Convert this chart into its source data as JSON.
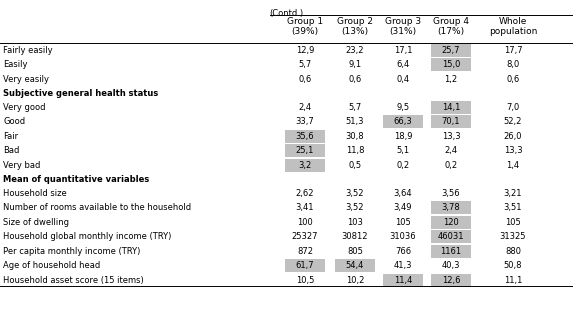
{
  "title": "(Contd.)",
  "rows": [
    {
      "label": "Fairly easily",
      "values": [
        "12,9",
        "23,2",
        "17,1",
        "25,7",
        "17,7"
      ],
      "highlights": [
        false,
        false,
        false,
        true,
        false
      ],
      "bold": false
    },
    {
      "label": "Easily",
      "values": [
        "5,7",
        "9,1",
        "6,4",
        "15,0",
        "8,0"
      ],
      "highlights": [
        false,
        false,
        false,
        true,
        false
      ],
      "bold": false
    },
    {
      "label": "Very easily",
      "values": [
        "0,6",
        "0,6",
        "0,4",
        "1,2",
        "0,6"
      ],
      "highlights": [
        false,
        false,
        false,
        false,
        false
      ],
      "bold": false
    },
    {
      "label": "Subjective general health status",
      "values": [
        "",
        "",
        "",
        "",
        ""
      ],
      "highlights": [
        false,
        false,
        false,
        false,
        false
      ],
      "bold": true
    },
    {
      "label": "Very good",
      "values": [
        "2,4",
        "5,7",
        "9,5",
        "14,1",
        "7,0"
      ],
      "highlights": [
        false,
        false,
        false,
        true,
        false
      ],
      "bold": false
    },
    {
      "label": "Good",
      "values": [
        "33,7",
        "51,3",
        "66,3",
        "70,1",
        "52,2"
      ],
      "highlights": [
        false,
        false,
        true,
        true,
        false
      ],
      "bold": false
    },
    {
      "label": "Fair",
      "values": [
        "35,6",
        "30,8",
        "18,9",
        "13,3",
        "26,0"
      ],
      "highlights": [
        true,
        false,
        false,
        false,
        false
      ],
      "bold": false
    },
    {
      "label": "Bad",
      "values": [
        "25,1",
        "11,8",
        "5,1",
        "2,4",
        "13,3"
      ],
      "highlights": [
        true,
        false,
        false,
        false,
        false
      ],
      "bold": false
    },
    {
      "label": "Very bad",
      "values": [
        "3,2",
        "0,5",
        "0,2",
        "0,2",
        "1,4"
      ],
      "highlights": [
        true,
        false,
        false,
        false,
        false
      ],
      "bold": false
    },
    {
      "label": "Mean of quantitative variables",
      "values": [
        "",
        "",
        "",
        "",
        ""
      ],
      "highlights": [
        false,
        false,
        false,
        false,
        false
      ],
      "bold": true
    },
    {
      "label": "Household size",
      "values": [
        "2,62",
        "3,52",
        "3,64",
        "3,56",
        "3,21"
      ],
      "highlights": [
        false,
        false,
        false,
        false,
        false
      ],
      "bold": false
    },
    {
      "label": "Number of rooms available to the household",
      "values": [
        "3,41",
        "3,52",
        "3,49",
        "3,78",
        "3,51"
      ],
      "highlights": [
        false,
        false,
        false,
        true,
        false
      ],
      "bold": false
    },
    {
      "label": "Size of dwelling",
      "values": [
        "100",
        "103",
        "105",
        "120",
        "105"
      ],
      "highlights": [
        false,
        false,
        false,
        true,
        false
      ],
      "bold": false
    },
    {
      "label": "Household global monthly income (TRY)",
      "values": [
        "25327",
        "30812",
        "31036",
        "46031",
        "31325"
      ],
      "highlights": [
        false,
        false,
        false,
        true,
        false
      ],
      "bold": false
    },
    {
      "label": "Per capita monthly income (TRY)",
      "values": [
        "872",
        "805",
        "766",
        "1161",
        "880"
      ],
      "highlights": [
        false,
        false,
        false,
        true,
        false
      ],
      "bold": false
    },
    {
      "label": "Age of household head",
      "values": [
        "61,7",
        "54,4",
        "41,3",
        "40,3",
        "50,8"
      ],
      "highlights": [
        true,
        true,
        false,
        false,
        false
      ],
      "bold": false
    },
    {
      "label": "Household asset score (15 items)",
      "values": [
        "10,5",
        "10,2",
        "11,4",
        "12,6",
        "11,1"
      ],
      "highlights": [
        false,
        false,
        true,
        true,
        false
      ],
      "bold": false
    }
  ],
  "col_headers": [
    "Group 1\n(39%)",
    "Group 2\n(13%)",
    "Group 3\n(31%)",
    "Group 4\n(17%)",
    "Whole\npopulation"
  ],
  "highlight_color": "#c0c0c0",
  "bg_color": "#ffffff",
  "line_color": "#000000",
  "text_color": "#000000",
  "font_size": 6.0,
  "header_font_size": 6.5
}
